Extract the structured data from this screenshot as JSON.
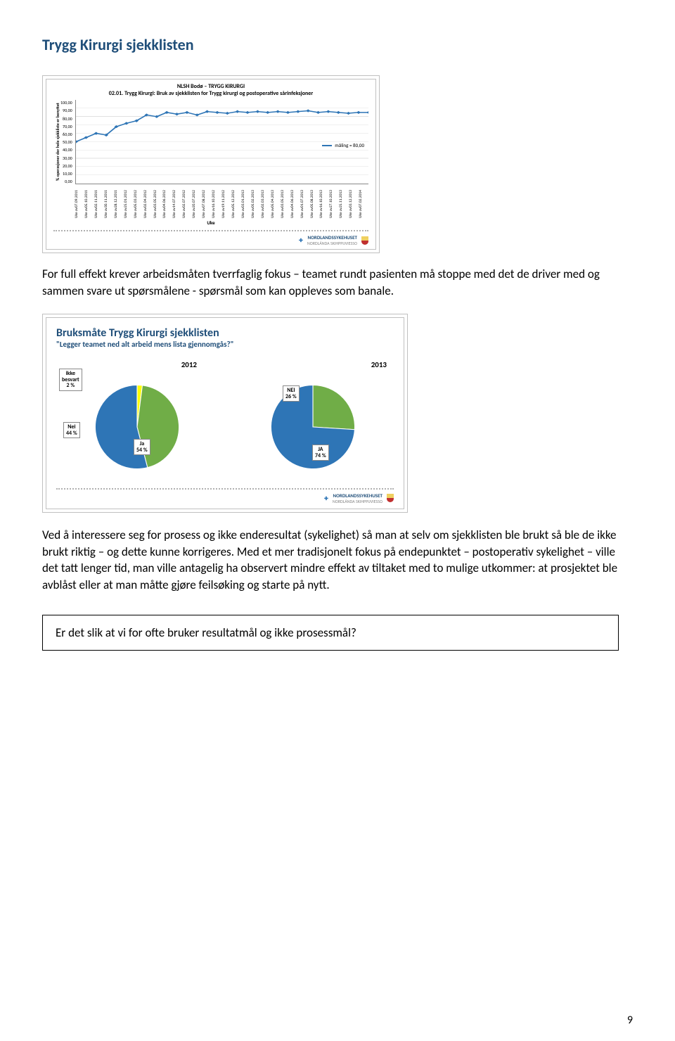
{
  "page": {
    "title": "Trygg Kirurgi sjekklisten",
    "page_number": "9"
  },
  "line_chart": {
    "header_line1": "NLSH Bodø – TRYGG KIRURGI",
    "header_line2": "02.01. Trygg Kirurgi: Bruk av sjekklisten for Trygg kirurgi og postoperative sårinfeksjoner",
    "y_label": "% operasjoner der hele sjekkliste er benyttet",
    "y_ticks": [
      "100,00",
      "90,00",
      "80,00",
      "70,00",
      "60,00",
      "50,00",
      "40,00",
      "30,00",
      "20,00",
      "10,00",
      "0,00"
    ],
    "x_label": "Uke",
    "x_ticks": [
      "Uke av07.09.2011",
      "Uke av05.10.2011",
      "Uke av02.11.2011",
      "Uke av30.11.2011",
      "Uke av28.12.2011",
      "Uke av25.01.2012",
      "Uke av05.03.2012",
      "Uke av02.04.2012",
      "Uke av03.05.2012",
      "Uke av04.06.2012",
      "Uke av14.07.2012",
      "Uke av02.07.2012",
      "Uke av20.07.2012",
      "Uke av07.08.2012",
      "Uke av16.10.2012",
      "Uke av19.11.2012",
      "Uke av05.12.2012",
      "Uke av03.01.2013",
      "Uke av05.02.2013",
      "Uke av02.03.2013",
      "Uke av05.04.2013",
      "Uke av03.05.2013",
      "Uke av04.06.2013",
      "Uke av01.07.2013",
      "Uke av05.08.2013",
      "Uke av16.10.2013",
      "Uke av27.10.2013",
      "Uke av25.11.2013",
      "Uke av03.12.2013",
      "Uke av07.02.2014"
    ],
    "legend_text": "måling = 80,00",
    "series_values": [
      50,
      55,
      60,
      58,
      68,
      72,
      75,
      82,
      80,
      85,
      83,
      85,
      82,
      86,
      85,
      84,
      86,
      85,
      86,
      85,
      86,
      85,
      86,
      87,
      85,
      86,
      85,
      84,
      85,
      85
    ],
    "ylim": [
      0,
      100
    ],
    "line_color": "#2e75b6",
    "marker_color": "#2e75b6",
    "grid_color": "#e0e0e0",
    "axis_color": "#888888",
    "background_color": "#ffffff"
  },
  "paragraph1": "For full effekt krever arbeidsmåten tverrfaglig fokus – teamet rundt pasienten må stoppe med det de driver med og sammen svare ut spørsmålene - spørsmål som kan oppleves som banale.",
  "pie_slide": {
    "title": "Bruksmåte Trygg Kirurgi sjekklisten",
    "subtitle": "\"Legger teamet ned alt arbeid mens lista gjennomgås?\"",
    "year_2012": "2012",
    "year_2013": "2013",
    "pie2012": {
      "slices": [
        {
          "label_key": "ikke_besvart",
          "label": "ikke\nbesvart\n2 %",
          "value": 2,
          "color": "#ffff00"
        },
        {
          "label_key": "nei",
          "label": "Nei\n44 %",
          "value": 44,
          "color": "#70ad47"
        },
        {
          "label_key": "ja",
          "label": "Ja\n54 %",
          "value": 54,
          "color": "#2e75b6"
        }
      ]
    },
    "pie2013": {
      "slices": [
        {
          "label_key": "nei",
          "label": "NEI\n26 %",
          "value": 26,
          "color": "#70ad47"
        },
        {
          "label_key": "ja",
          "label": "JA\n74 %",
          "value": 74,
          "color": "#2e75b6"
        }
      ]
    }
  },
  "paragraph2": "Ved å interessere seg for prosess og ikke enderesultat (sykelighet) så man at selv om sjekklisten ble brukt så ble de ikke brukt riktig – og dette kunne korrigeres. Med et mer tradisjonelt fokus på endepunktet – postoperativ sykelighet – ville det tatt lenger tid, man ville antagelig ha observert mindre effekt av tiltaket med to mulige utkommer: at prosjektet ble avblåst eller at man måtte gjøre feilsøking og starte på nytt.",
  "question_box": "Er det slik at vi for ofte bruker resultatmål og ikke prosessmål?",
  "logo": {
    "name": "NORDLANDSSYKEHUSET",
    "sub": "NORDLÁNDA SKIHPPIJVIESSO"
  }
}
